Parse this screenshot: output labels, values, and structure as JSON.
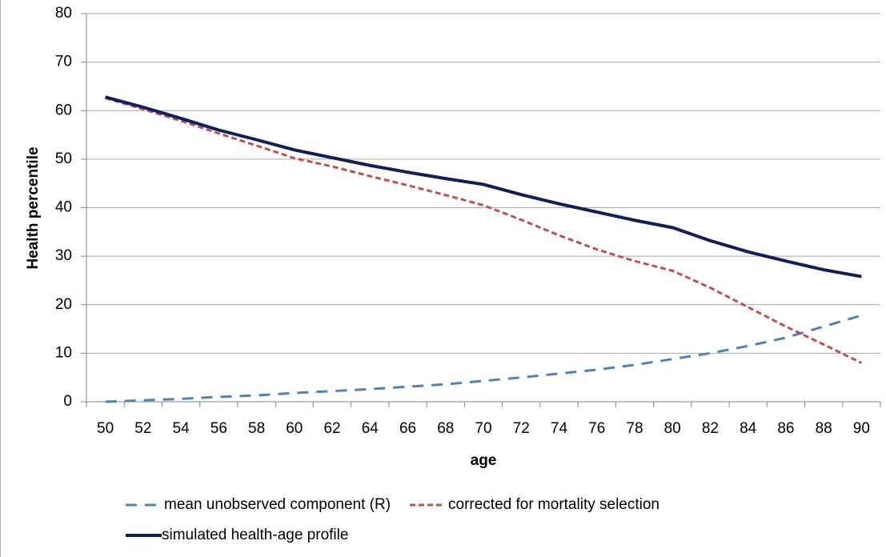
{
  "chart_data": {
    "type": "line",
    "x_label": "age",
    "y_label": "Health percentile",
    "categories": [
      "50",
      "52",
      "54",
      "56",
      "58",
      "60",
      "62",
      "64",
      "66",
      "68",
      "70",
      "72",
      "74",
      "76",
      "78",
      "80",
      "82",
      "84",
      "86",
      "88",
      "90"
    ],
    "series": [
      {
        "name": "mean unobserved component (R)",
        "color": "#4f81bd",
        "style": "long-dash",
        "values": [
          0,
          0.3,
          0.6,
          1,
          1.3,
          1.8,
          2.2,
          2.6,
          3.1,
          3.6,
          4.3,
          5,
          5.8,
          6.6,
          7.6,
          8.8,
          10,
          11.5,
          13.2,
          15.5,
          17.8
        ]
      },
      {
        "name": "corrected for mortality selection",
        "color": "#c0504d",
        "style": "short-dash",
        "values": [
          62.6,
          60.3,
          57.9,
          55.3,
          52.8,
          50.2,
          48.5,
          46.5,
          44.6,
          42.6,
          40.5,
          37.5,
          34.3,
          31.4,
          29,
          27,
          23.5,
          19.5,
          15.5,
          11.8,
          8
        ]
      },
      {
        "name": "simulated health-age profile",
        "color": "#0d1f5c",
        "style": "solid",
        "values": [
          62.8,
          60.7,
          58.4,
          56,
          54,
          51.9,
          50.3,
          48.7,
          47.3,
          46,
          44.8,
          42.7,
          40.8,
          39.1,
          37.4,
          35.9,
          33.2,
          30.9,
          29,
          27.2,
          25.8
        ]
      }
    ],
    "ylim": [
      0,
      80
    ],
    "yticks": [
      0,
      10,
      20,
      30,
      40,
      50,
      60,
      70,
      80
    ],
    "grid": true
  }
}
